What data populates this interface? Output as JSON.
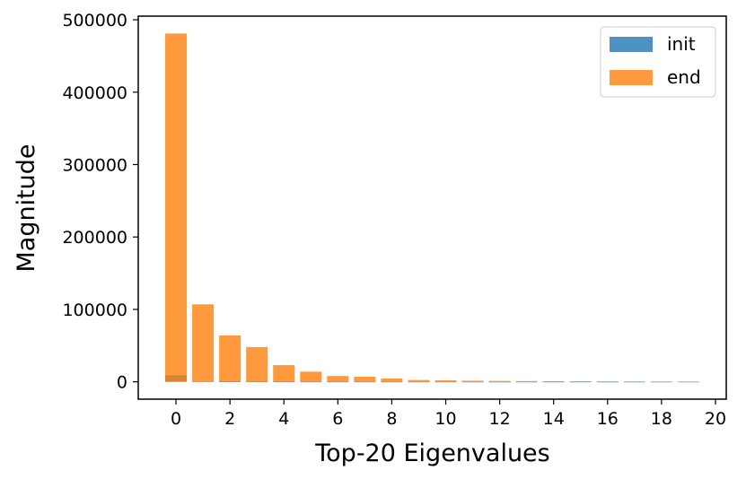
{
  "chart_data": {
    "type": "bar",
    "xlabel": "Top-20 Eigenvalues",
    "ylabel": "Magnitude",
    "x": [
      0,
      1,
      2,
      3,
      4,
      5,
      6,
      7,
      8,
      9,
      10,
      11,
      12,
      13,
      14,
      15,
      16,
      17,
      18,
      19
    ],
    "xlim": [
      -1.4,
      20.4
    ],
    "ylim": [
      -24000,
      505000
    ],
    "xticks": [
      0,
      2,
      4,
      6,
      8,
      10,
      12,
      14,
      16,
      18,
      20
    ],
    "yticks": [
      0,
      100000,
      200000,
      300000,
      400000,
      500000
    ],
    "grid": false,
    "legend_position": "top-right",
    "series": [
      {
        "name": "init",
        "color": "#1f77b4",
        "values": [
          9000,
          500,
          300,
          200,
          150,
          100,
          80,
          60,
          50,
          40,
          30,
          25,
          20,
          18,
          15,
          12,
          10,
          8,
          6,
          5
        ]
      },
      {
        "name": "end",
        "color": "#ff7f0e",
        "values": [
          481000,
          107000,
          64000,
          48000,
          23000,
          14000,
          8000,
          7000,
          4500,
          2500,
          2000,
          1500,
          1200,
          1000,
          800,
          700,
          600,
          500,
          400,
          300
        ]
      }
    ]
  }
}
